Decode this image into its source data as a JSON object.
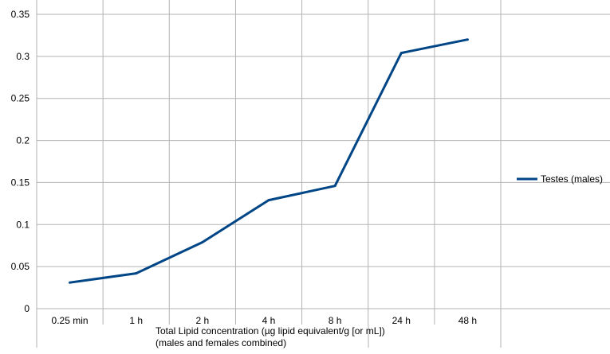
{
  "chart_data": {
    "type": "line",
    "categories": [
      "0.25 min",
      "1 h",
      "2 h",
      "4 h",
      "8 h",
      "24 h",
      "48 h"
    ],
    "series": [
      {
        "name": "Testes (males)",
        "values": [
          0.031,
          0.042,
          0.079,
          0.129,
          0.146,
          0.304,
          0.32
        ],
        "color": "#004586"
      }
    ],
    "xlabel": [
      "Total Lipid concentration (µg lipid equivalent/g [or mL])",
      "(males and females combined)"
    ],
    "ylim": [
      0,
      0.35
    ],
    "yticks": [
      "0",
      "0.05",
      "0.1",
      "0.15",
      "0.2",
      "0.25",
      "0.3",
      "0.35"
    ],
    "grid": true,
    "legend_position": "right"
  }
}
